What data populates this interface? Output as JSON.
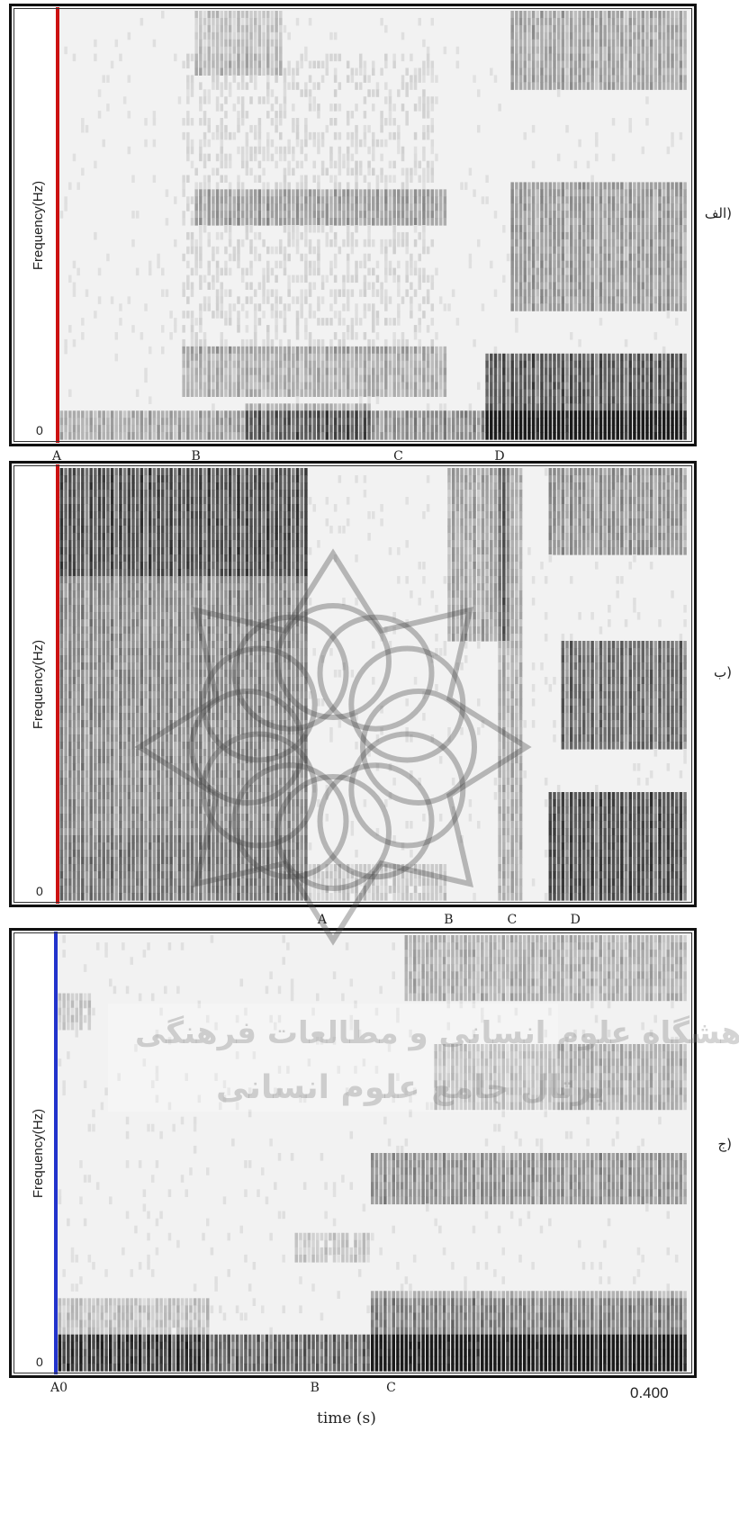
{
  "chart_data": [
    {
      "type": "heatmap",
      "panel_label": "الف)",
      "ylabel": "Frequency(Hz)",
      "y_min_label": "0",
      "cursor_color": "#cc1111",
      "markers": [
        "A",
        "B",
        "C",
        "D"
      ],
      "marker_positions": [
        0.0,
        0.22,
        0.54,
        0.7
      ]
    },
    {
      "type": "heatmap",
      "panel_label": "ب)",
      "ylabel": "Frequency(Hz)",
      "y_min_label": "0",
      "cursor_color": "#cc1111",
      "markers": [
        "A",
        "B",
        "C",
        "D"
      ],
      "marker_positions": [
        0.42,
        0.62,
        0.72,
        0.82
      ]
    },
    {
      "type": "heatmap",
      "panel_label": "ج)",
      "ylabel": "Frequency(Hz)",
      "y_min_label": "0",
      "cursor_color": "#2233cc",
      "markers": [
        "A0",
        "B",
        "C"
      ],
      "marker_positions": [
        0.0,
        0.41,
        0.53
      ],
      "x_end_label": "0.400",
      "xlabel": "time (s)"
    }
  ],
  "watermark": {
    "line1": "پژوهشگاه علوم انسانی و مطالعات فرهنگی",
    "line2": "پرتال جامع علوم انسانی"
  }
}
